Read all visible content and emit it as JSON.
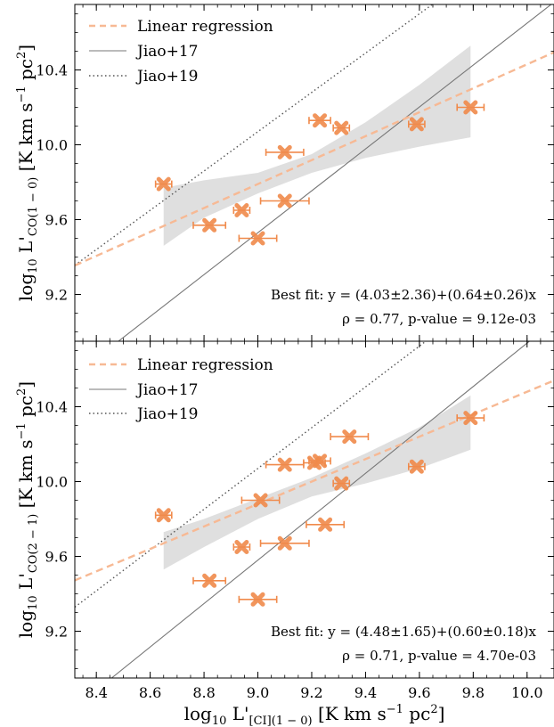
{
  "chart_data": [
    {
      "type": "scatter",
      "title": "",
      "xlabel": "log10 L'[CI](1-0) [K km s^-1 pc^2]",
      "ylabel_parts": {
        "main": "log",
        "sub1": "10",
        "mid": " L'",
        "sub2": "CO(1 − 0)",
        "unit": " [K km s",
        "sup1": "−1",
        "unit2": " pc",
        "sup2": "2",
        "end": "]"
      },
      "xlim": [
        8.32,
        10.1
      ],
      "ylim": [
        8.95,
        10.75
      ],
      "xticks": [
        "8.4",
        "8.6",
        "8.8",
        "9.0",
        "9.2",
        "9.4",
        "9.6",
        "9.8",
        "10.0"
      ],
      "yticks": [
        "9.2",
        "9.6",
        "10.0",
        "10.4"
      ],
      "ytick_values": [
        9.2,
        9.6,
        10.0,
        10.4
      ],
      "xtick_values": [
        8.4,
        8.6,
        8.8,
        9.0,
        9.2,
        9.4,
        9.6,
        9.8,
        10.0
      ],
      "points": [
        {
          "x": 8.65,
          "y": 9.79,
          "xerr": 0.03
        },
        {
          "x": 8.82,
          "y": 9.57,
          "xerr": 0.06
        },
        {
          "x": 8.94,
          "y": 9.65,
          "xerr": 0.03
        },
        {
          "x": 9.0,
          "y": 9.5,
          "xerr": 0.07
        },
        {
          "x": 9.1,
          "y": 9.7,
          "xerr": 0.09
        },
        {
          "x": 9.1,
          "y": 9.96,
          "xerr": 0.07
        },
        {
          "x": 9.23,
          "y": 10.13,
          "xerr": 0.04
        },
        {
          "x": 9.31,
          "y": 10.09,
          "xerr": 0.03
        },
        {
          "x": 9.59,
          "y": 10.11,
          "xerr": 0.03
        },
        {
          "x": 9.79,
          "y": 10.2,
          "xerr": 0.05
        }
      ],
      "regression": {
        "intercept": 4.03,
        "slope": 0.64
      },
      "band_x": [
        8.65,
        8.8,
        9.0,
        9.2,
        9.4,
        9.6,
        9.79
      ],
      "band_lo": [
        9.46,
        9.61,
        9.74,
        9.85,
        9.93,
        9.99,
        10.04
      ],
      "band_hi": [
        9.77,
        9.81,
        9.85,
        9.95,
        10.12,
        10.32,
        10.53
      ],
      "jiao17": {
        "intercept": -0.55,
        "slope": 1.12
      },
      "jiao19": {
        "intercept": 0.62,
        "slope": 1.05
      },
      "legend": [
        "Linear regression",
        "Jiao+17",
        "Jiao+19"
      ],
      "annotation_fit": "Best fit: y = (4.03±2.36)+(0.64±0.26)x",
      "annotation_rho": "ρ = 0.77, p-value = 9.12e-03",
      "colors": {
        "points": "#f08a4b",
        "regression": "#f7b994",
        "band": "#d9d9d9",
        "jiao17": "#777777",
        "jiao19": "#555555"
      }
    },
    {
      "type": "scatter",
      "title": "",
      "xlabel": "log10 L'[CI](1-0) [K km s^-1 pc^2]",
      "ylabel_parts": {
        "main": "log",
        "sub1": "10",
        "mid": " L'",
        "sub2": "CO(2 − 1)",
        "unit": " [K km s",
        "sup1": "−1",
        "unit2": " pc",
        "sup2": "2",
        "end": "]"
      },
      "xlim": [
        8.32,
        10.1
      ],
      "ylim": [
        8.95,
        10.75
      ],
      "xticks": [
        "8.4",
        "8.6",
        "8.8",
        "9.0",
        "9.2",
        "9.4",
        "9.6",
        "9.8",
        "10.0"
      ],
      "yticks": [
        "9.2",
        "9.6",
        "10.0",
        "10.4"
      ],
      "ytick_values": [
        9.2,
        9.6,
        10.0,
        10.4
      ],
      "xtick_values": [
        8.4,
        8.6,
        8.8,
        9.0,
        9.2,
        9.4,
        9.6,
        9.8,
        10.0
      ],
      "points": [
        {
          "x": 8.65,
          "y": 9.82,
          "xerr": 0.03
        },
        {
          "x": 8.82,
          "y": 9.47,
          "xerr": 0.06
        },
        {
          "x": 8.94,
          "y": 9.65,
          "xerr": 0.03
        },
        {
          "x": 9.0,
          "y": 9.37,
          "xerr": 0.07
        },
        {
          "x": 9.1,
          "y": 9.67,
          "xerr": 0.09
        },
        {
          "x": 9.01,
          "y": 9.9,
          "xerr": 0.07
        },
        {
          "x": 9.1,
          "y": 10.09,
          "xerr": 0.07
        },
        {
          "x": 9.21,
          "y": 10.1,
          "xerr": 0.04
        },
        {
          "x": 9.23,
          "y": 10.11,
          "xerr": 0.04
        },
        {
          "x": 9.25,
          "y": 9.77,
          "xerr": 0.07
        },
        {
          "x": 9.31,
          "y": 9.99,
          "xerr": 0.03
        },
        {
          "x": 9.34,
          "y": 10.24,
          "xerr": 0.07
        },
        {
          "x": 9.59,
          "y": 10.08,
          "xerr": 0.03
        },
        {
          "x": 9.79,
          "y": 10.34,
          "xerr": 0.05
        }
      ],
      "regression": {
        "intercept": 4.48,
        "slope": 0.6
      },
      "band_x": [
        8.65,
        8.8,
        9.0,
        9.2,
        9.4,
        9.6,
        9.79
      ],
      "band_lo": [
        9.53,
        9.65,
        9.8,
        9.92,
        9.99,
        10.07,
        10.17
      ],
      "band_hi": [
        9.73,
        9.8,
        9.91,
        10.02,
        10.15,
        10.29,
        10.46
      ],
      "jiao17": {
        "intercept": -0.86,
        "slope": 1.16
      },
      "jiao19": {
        "intercept": 0.26,
        "slope": 1.09
      },
      "legend": [
        "Linear regression",
        "Jiao+17",
        "Jiao+19"
      ],
      "annotation_fit": "Best fit: y = (4.48±1.65)+(0.60±0.18)x",
      "annotation_rho": "ρ = 0.71, p-value = 4.70e-03",
      "colors": {
        "points": "#f08a4b",
        "regression": "#f7b994",
        "band": "#d9d9d9",
        "jiao17": "#777777",
        "jiao19": "#555555"
      }
    }
  ],
  "xlabel_parts": {
    "main": "log",
    "sub1": "10",
    "mid": " L'",
    "sub2": "[CI](1 − 0)",
    "unit": " [K km s",
    "sup1": "−1",
    "unit2": " pc",
    "sup2": "2",
    "end": "]"
  }
}
